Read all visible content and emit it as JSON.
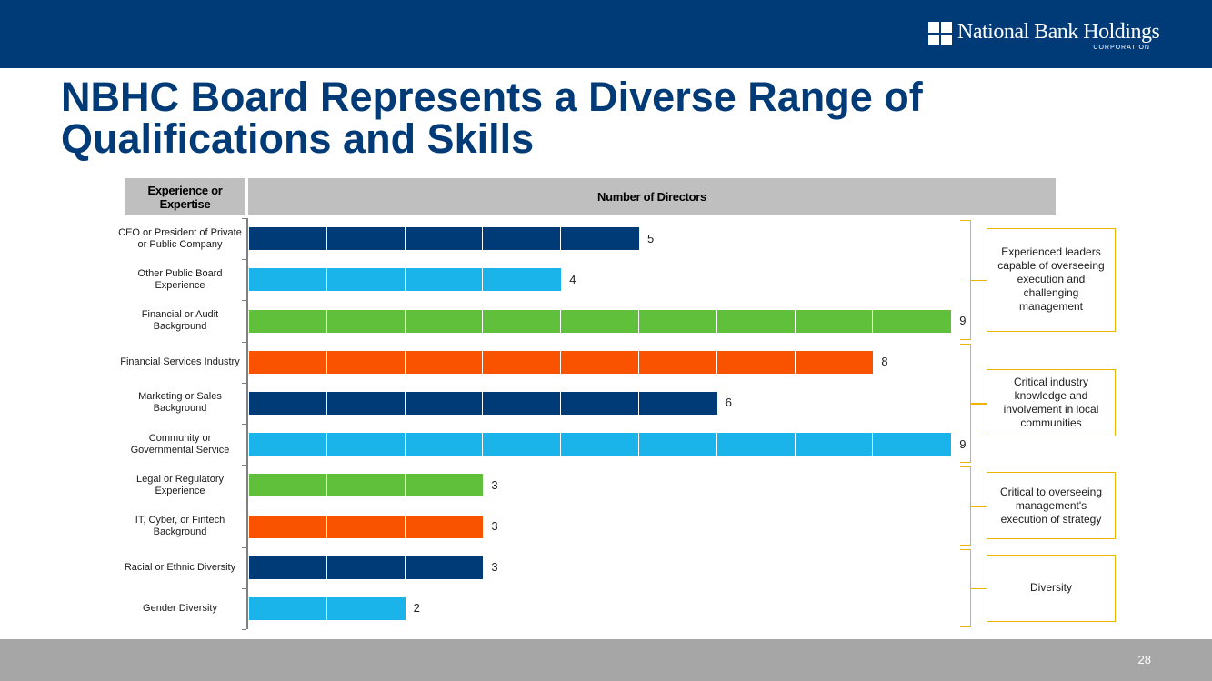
{
  "header": {
    "logo_text": "National Bank Holdings",
    "logo_subtext": "CORPORATION"
  },
  "title": "NBHC Board Represents a Diverse Range of Qualifications and Skills",
  "page_number": "28",
  "chart_data": {
    "type": "bar",
    "orientation": "horizontal",
    "column_headers": {
      "category": "Experience or Expertise",
      "value": "Number of Directors"
    },
    "categories": [
      "CEO or President of Private or Public Company",
      "Other Public Board Experience",
      "Financial or Audit Background",
      "Financial Services Industry",
      "Marketing or Sales Background",
      "Community or Governmental Service",
      "Legal or Regulatory Experience",
      "IT, Cyber, or Fintech Background",
      "Racial or Ethnic Diversity",
      "Gender Diversity"
    ],
    "values": [
      5,
      4,
      9,
      8,
      6,
      9,
      3,
      3,
      3,
      2
    ],
    "colors": [
      "#003b78",
      "#1ab4ea",
      "#60bf3b",
      "#f95300",
      "#003b78",
      "#1ab4ea",
      "#60bf3b",
      "#f95300",
      "#003b78",
      "#1ab4ea"
    ],
    "xlim": [
      0,
      9
    ],
    "groups": [
      {
        "label": "Experienced leaders capable of overseeing execution and challenging management",
        "first": 0,
        "last": 2
      },
      {
        "label": "Critical industry knowledge and involvement in local communities",
        "first": 3,
        "last": 5
      },
      {
        "label": "Critical to overseeing management's execution of strategy",
        "first": 6,
        "last": 7
      },
      {
        "label": "Diversity",
        "first": 8,
        "last": 9
      }
    ]
  }
}
